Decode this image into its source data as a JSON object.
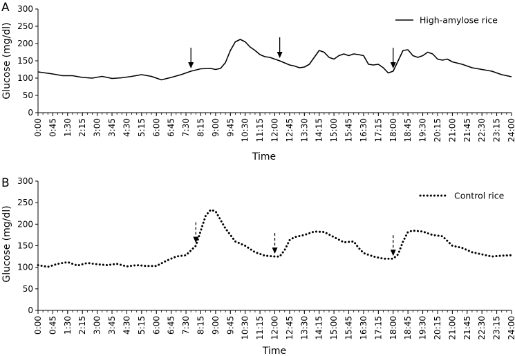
{
  "chart_data": [
    {
      "type": "line",
      "panel": "A",
      "xlabel": "Time",
      "ylabel": "Glucose (mg/dl)",
      "ylim": [
        0,
        300
      ],
      "yticks": [
        0,
        50,
        100,
        150,
        200,
        250,
        300
      ],
      "xlim": [
        0,
        24
      ],
      "xtick_labels": [
        "0:00",
        "0:45",
        "1:30",
        "2:15",
        "3:00",
        "3:45",
        "4:30",
        "5:15",
        "6:00",
        "6:45",
        "7:30",
        "8:15",
        "9:00",
        "9:45",
        "10:30",
        "11:15",
        "12:00",
        "12:45",
        "13:30",
        "14:15",
        "15:00",
        "15:45",
        "16:30",
        "17:15",
        "18:00",
        "18:45",
        "19:30",
        "20:15",
        "21:00",
        "21:45",
        "22:30",
        "23:15",
        "24:00"
      ],
      "legend": "top-right",
      "series": [
        {
          "name": "High-amylose rice",
          "style": "solid",
          "color": "#000000",
          "x": [
            0,
            0.75,
            1.25,
            1.75,
            2.25,
            2.75,
            3.25,
            3.75,
            4.25,
            4.75,
            5.25,
            5.75,
            6.25,
            6.75,
            7.25,
            7.75,
            8.25,
            8.75,
            9.0,
            9.25,
            9.5,
            9.75,
            10.0,
            10.25,
            10.5,
            10.75,
            11.0,
            11.25,
            11.5,
            11.75,
            12.25,
            12.75,
            13.0,
            13.25,
            13.5,
            13.75,
            14.0,
            14.25,
            14.5,
            14.75,
            15.0,
            15.25,
            15.5,
            15.75,
            16.0,
            16.25,
            16.5,
            16.75,
            17.0,
            17.25,
            17.5,
            17.75,
            18.0,
            18.25,
            18.5,
            18.75,
            19.0,
            19.25,
            19.5,
            19.75,
            20.0,
            20.25,
            20.5,
            20.75,
            21.0,
            21.5,
            22.0,
            22.5,
            23.0,
            23.5,
            24.0
          ],
          "y": [
            118,
            112,
            107,
            107,
            102,
            100,
            105,
            99,
            101,
            105,
            110,
            105,
            95,
            102,
            110,
            120,
            127,
            128,
            125,
            128,
            145,
            180,
            205,
            212,
            205,
            190,
            180,
            168,
            162,
            160,
            150,
            138,
            135,
            130,
            132,
            140,
            160,
            180,
            175,
            160,
            155,
            165,
            170,
            165,
            170,
            168,
            165,
            140,
            138,
            140,
            130,
            115,
            120,
            150,
            180,
            182,
            165,
            160,
            165,
            175,
            170,
            155,
            152,
            155,
            147,
            140,
            130,
            125,
            120,
            110,
            104
          ]
        }
      ],
      "annotations": [
        {
          "type": "arrow",
          "style": "solid",
          "x": 7.75,
          "label": ""
        },
        {
          "type": "arrow",
          "style": "solid",
          "x": 12.25,
          "label": ""
        },
        {
          "type": "arrow",
          "style": "solid",
          "x": 18.0,
          "label": ""
        }
      ]
    },
    {
      "type": "line",
      "panel": "B",
      "xlabel": "Time",
      "ylabel": "Glucose (mg/dl)",
      "ylim": [
        0,
        300
      ],
      "yticks": [
        0,
        50,
        100,
        150,
        200,
        250,
        300
      ],
      "xlim": [
        0,
        24
      ],
      "xtick_labels": [
        "0:00",
        "0:45",
        "1:30",
        "2:15",
        "3:00",
        "3:45",
        "4:30",
        "5:15",
        "6:00",
        "6:45",
        "7:30",
        "8:15",
        "9:00",
        "9:45",
        "10:30",
        "11:15",
        "12:00",
        "12:45",
        "13:30",
        "14:15",
        "15:00",
        "15:45",
        "16:30",
        "17:15",
        "18:00",
        "18:45",
        "19:30",
        "20:15",
        "21:00",
        "21:45",
        "22:30",
        "23:15",
        "24:00"
      ],
      "legend": "top-right",
      "series": [
        {
          "name": "Control rice",
          "style": "dotted",
          "color": "#000000",
          "x": [
            0,
            0.5,
            1.0,
            1.5,
            2.0,
            2.5,
            3.0,
            3.5,
            4.0,
            4.5,
            5.0,
            5.5,
            6.0,
            6.5,
            7.0,
            7.5,
            8.0,
            8.25,
            8.5,
            8.75,
            9.0,
            9.25,
            9.5,
            9.75,
            10.0,
            10.5,
            11.0,
            11.5,
            12.0,
            12.25,
            12.5,
            12.75,
            13.0,
            13.5,
            14.0,
            14.5,
            15.0,
            15.5,
            16.0,
            16.25,
            16.5,
            17.0,
            17.5,
            18.0,
            18.25,
            18.5,
            18.75,
            19.0,
            19.5,
            20.0,
            20.5,
            21.0,
            21.5,
            22.0,
            22.5,
            23.0,
            23.5,
            24.0
          ],
          "y": [
            105,
            101,
            108,
            112,
            104,
            110,
            107,
            105,
            108,
            102,
            105,
            103,
            103,
            115,
            125,
            128,
            150,
            185,
            220,
            233,
            230,
            210,
            190,
            175,
            160,
            150,
            135,
            127,
            125,
            125,
            140,
            163,
            170,
            175,
            183,
            182,
            170,
            158,
            160,
            145,
            133,
            125,
            120,
            120,
            130,
            160,
            182,
            185,
            183,
            175,
            172,
            150,
            145,
            135,
            130,
            125,
            127,
            128
          ]
        }
      ],
      "annotations": [
        {
          "type": "arrow",
          "style": "dashed",
          "x": 8.0,
          "label": ""
        },
        {
          "type": "arrow",
          "style": "dashed",
          "x": 12.0,
          "label": ""
        },
        {
          "type": "arrow",
          "style": "dashed",
          "x": 18.0,
          "label": ""
        }
      ]
    }
  ]
}
